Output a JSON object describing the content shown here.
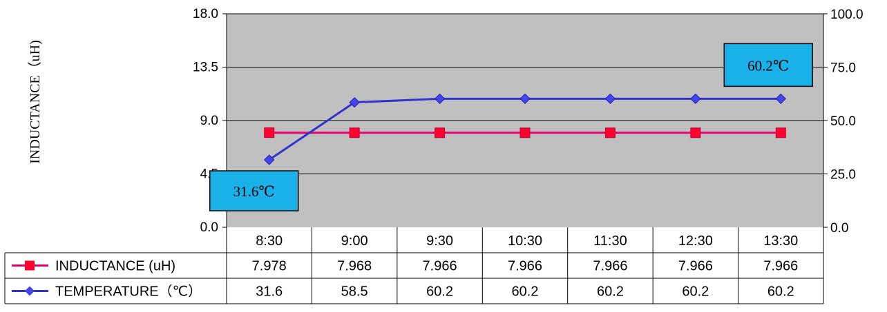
{
  "chart_data": {
    "type": "line",
    "categories": [
      "8:30",
      "9:00",
      "9:30",
      "10:30",
      "11:30",
      "12:30",
      "13:30"
    ],
    "series": [
      {
        "name": "INDUCTANCE (uH)",
        "axis": "left",
        "color": "#e8006e",
        "marker_color": "#ff0030",
        "marker": "square",
        "values": [
          7.978,
          7.968,
          7.966,
          7.966,
          7.966,
          7.966,
          7.966
        ],
        "table_values": [
          "7.978",
          "7.968",
          "7.966",
          "7.966",
          "7.966",
          "7.966",
          "7.966"
        ]
      },
      {
        "name": "TEMPERATURE（℃）",
        "axis": "right",
        "color": "#3333cc",
        "marker_color": "#4444ee",
        "marker": "diamond",
        "values": [
          31.6,
          58.5,
          60.2,
          60.2,
          60.2,
          60.2,
          60.2
        ],
        "table_values": [
          "31.6",
          "58.5",
          "60.2",
          "60.2",
          "60.2",
          "60.2",
          "60.2"
        ]
      }
    ],
    "ylabel": "INDUCTANCE（uH)",
    "ylim": [
      0,
      18
    ],
    "yticks": [
      "0.0",
      "4.5",
      "9.0",
      "13.5",
      "18.0"
    ],
    "y2lim": [
      0,
      100
    ],
    "y2ticks": [
      "0.0",
      "25.0",
      "50.0",
      "75.0",
      "100.0"
    ],
    "annotations": [
      {
        "text": "31.6℃",
        "category": "8:30",
        "series": "TEMPERATURE（℃）"
      },
      {
        "text": "60.2℃",
        "category": "13:30",
        "series": "TEMPERATURE（℃）"
      }
    ],
    "plot_bg": "#c0c0c0",
    "callout_bg": "#1ab0e8",
    "grid": true,
    "data_table": true
  }
}
